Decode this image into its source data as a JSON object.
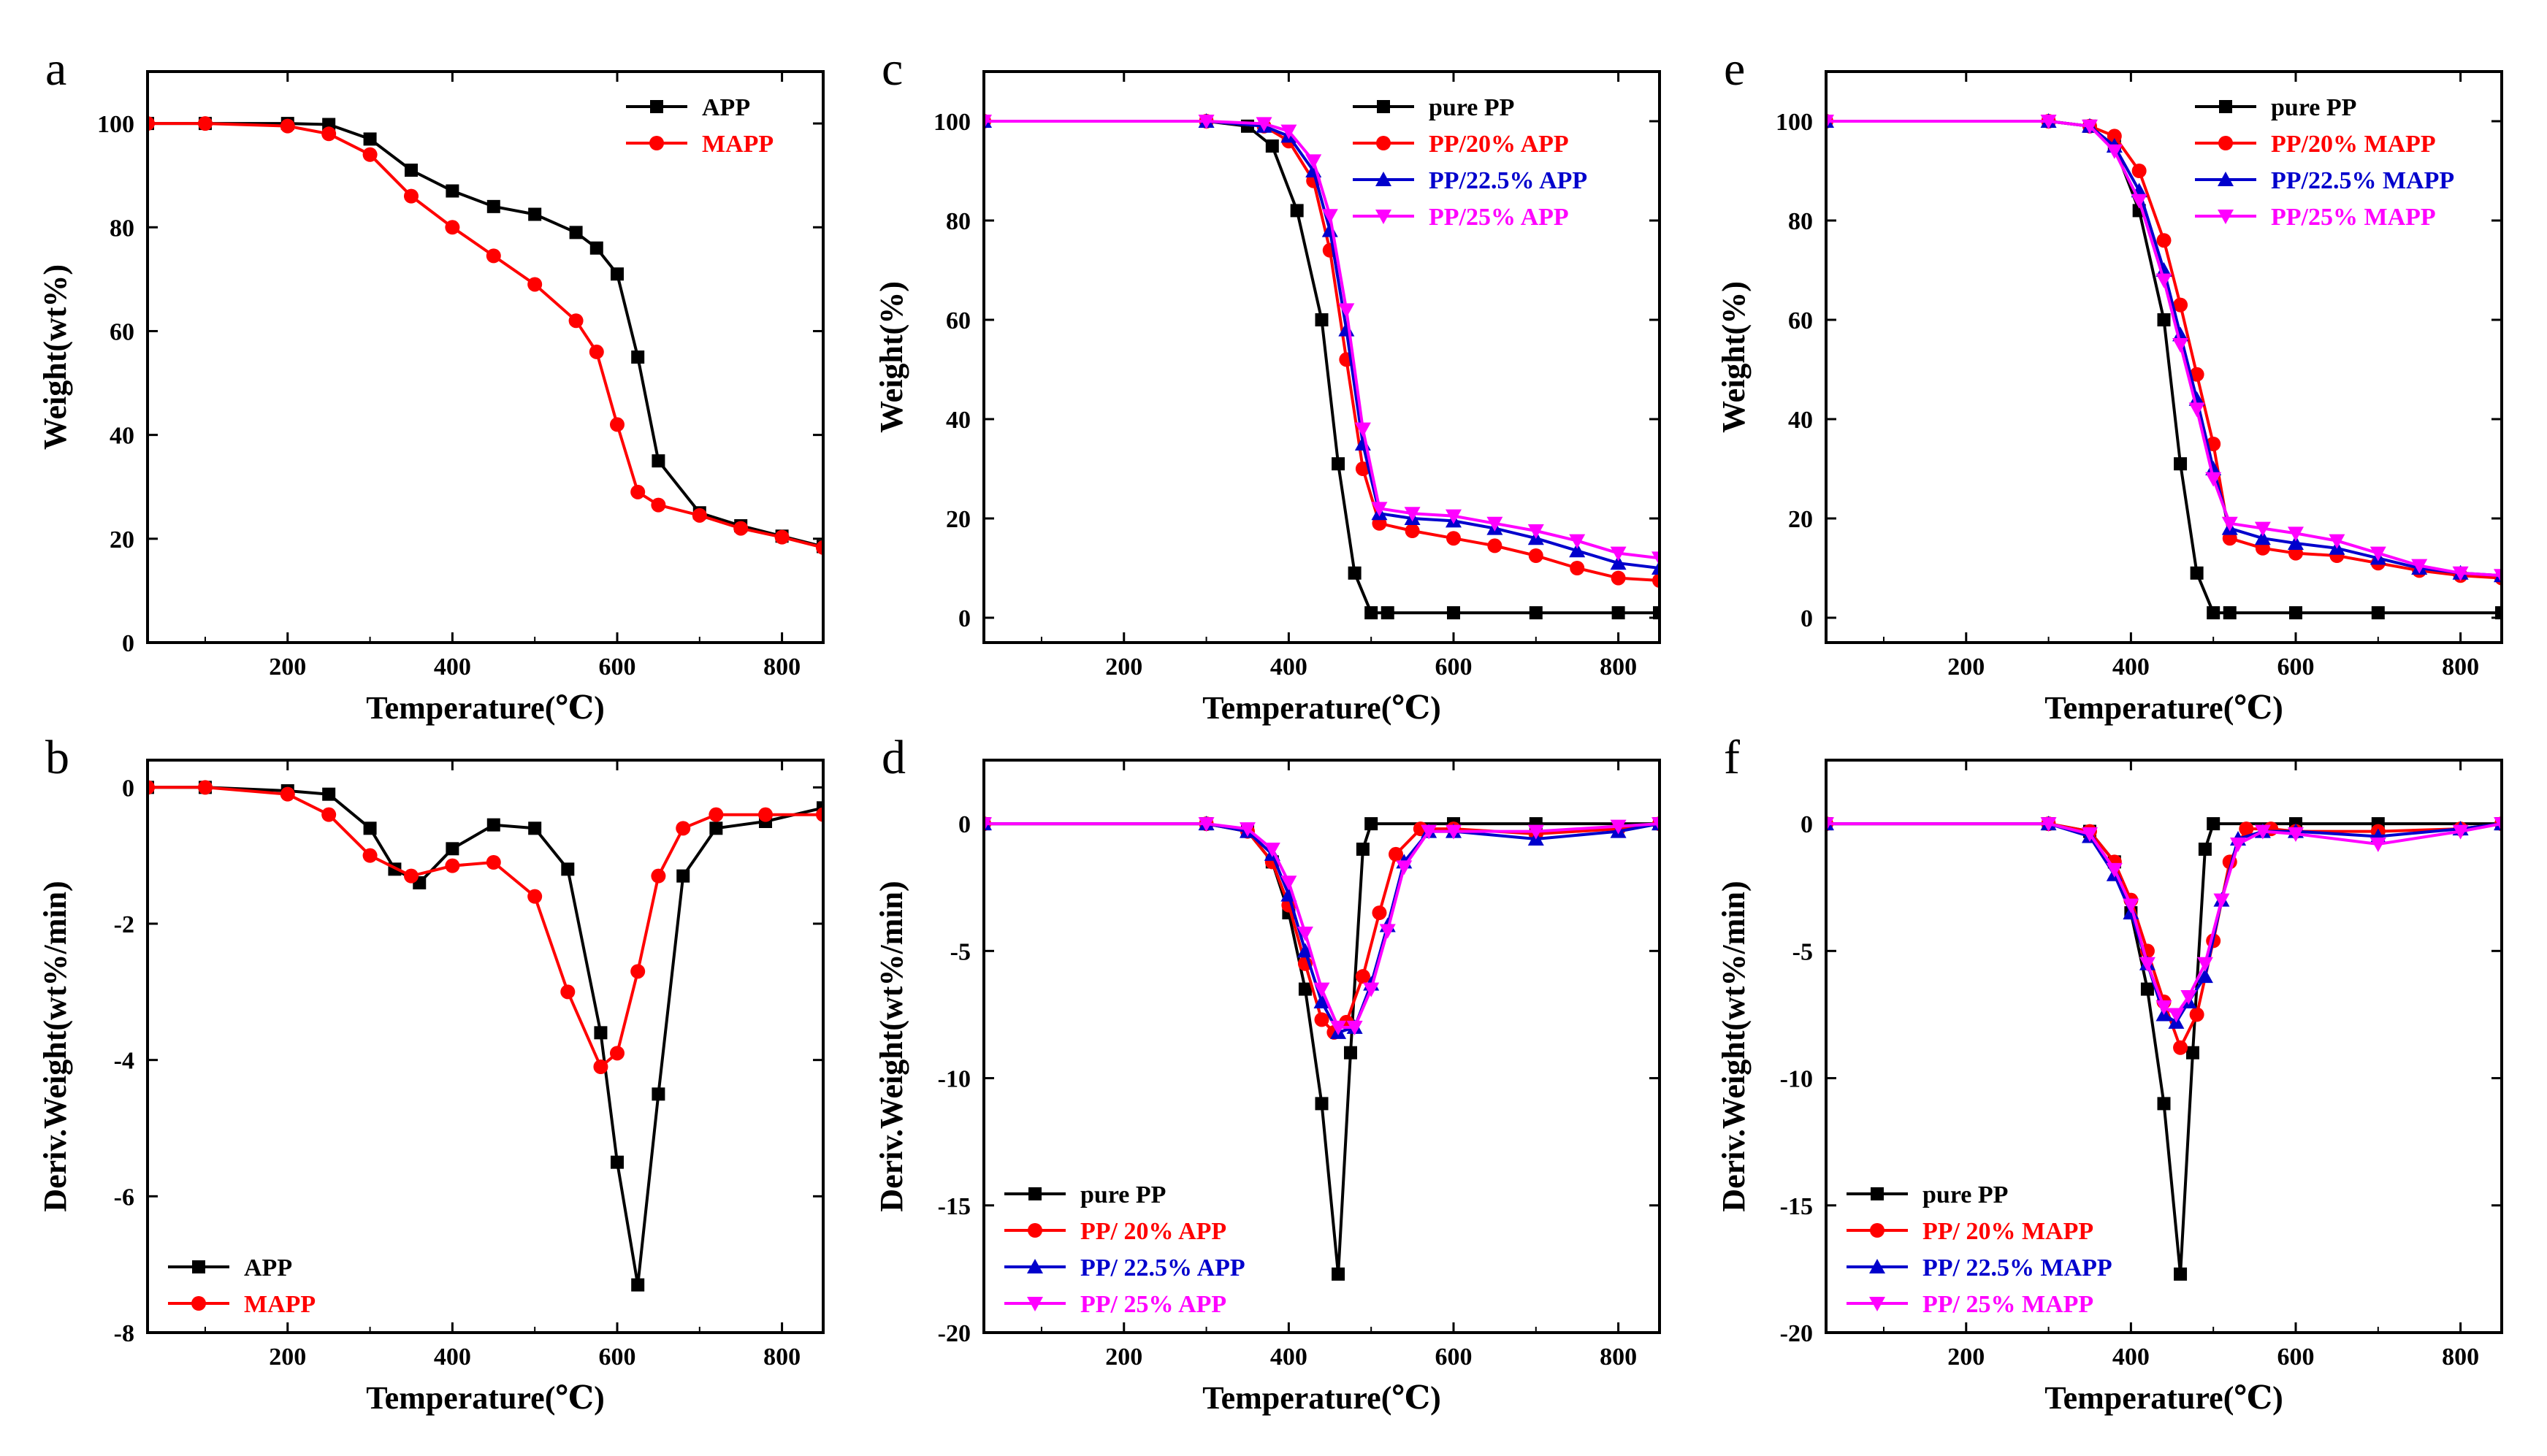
{
  "chart_data": [
    {
      "panel": "a",
      "type": "line",
      "xlabel": "Temperature(℃)",
      "ylabel": "Weight(wt%)",
      "xlim": [
        30,
        850
      ],
      "ylim": [
        0,
        110
      ],
      "xticks": [
        200,
        400,
        600,
        800
      ],
      "yticks": [
        0,
        20,
        40,
        60,
        80,
        100
      ],
      "legend": "top-right",
      "series": [
        {
          "name": "APP",
          "color": "#000000",
          "marker": "square",
          "x": [
            30,
            100,
            200,
            250,
            300,
            350,
            400,
            450,
            500,
            550,
            575,
            600,
            625,
            650,
            700,
            750,
            800,
            850
          ],
          "y": [
            100,
            100,
            100,
            99.8,
            97,
            91,
            87,
            84,
            82.5,
            79,
            76,
            71,
            55,
            35,
            25,
            22.5,
            20.5,
            18.5
          ]
        },
        {
          "name": "MAPP",
          "color": "#ff0000",
          "marker": "circle",
          "x": [
            30,
            100,
            200,
            250,
            300,
            350,
            400,
            450,
            500,
            550,
            575,
            600,
            625,
            650,
            700,
            750,
            800,
            850
          ],
          "y": [
            100,
            100,
            99.5,
            98,
            94,
            86,
            80,
            74.5,
            69,
            62,
            56,
            42,
            29,
            26.5,
            24.5,
            22,
            20.3,
            18.3
          ]
        }
      ]
    },
    {
      "panel": "b",
      "type": "line",
      "xlabel": "Temperature(℃)",
      "ylabel": "Deriv.Weight(wt%/min)",
      "xlim": [
        30,
        850
      ],
      "ylim": [
        -8,
        0.4
      ],
      "xticks": [
        200,
        400,
        600,
        800
      ],
      "yticks": [
        -8,
        -6,
        -4,
        -2,
        0
      ],
      "legend": "bottom-left",
      "series": [
        {
          "name": "APP",
          "color": "#000000",
          "marker": "square",
          "x": [
            30,
            100,
            200,
            250,
            300,
            330,
            360,
            400,
            450,
            500,
            540,
            580,
            600,
            625,
            650,
            680,
            720,
            780,
            850
          ],
          "y": [
            0,
            0,
            -0.05,
            -0.1,
            -0.6,
            -1.2,
            -1.4,
            -0.9,
            -0.55,
            -0.6,
            -1.2,
            -3.6,
            -5.5,
            -7.3,
            -4.5,
            -1.3,
            -0.6,
            -0.5,
            -0.3
          ]
        },
        {
          "name": "MAPP",
          "color": "#ff0000",
          "marker": "circle",
          "x": [
            30,
            100,
            200,
            250,
            300,
            350,
            400,
            450,
            500,
            540,
            580,
            600,
            625,
            650,
            680,
            720,
            780,
            850
          ],
          "y": [
            0,
            0,
            -0.1,
            -0.4,
            -1.0,
            -1.3,
            -1.15,
            -1.1,
            -1.6,
            -3.0,
            -4.1,
            -3.9,
            -2.7,
            -1.3,
            -0.6,
            -0.4,
            -0.4,
            -0.4
          ]
        }
      ]
    },
    {
      "panel": "c",
      "type": "line",
      "xlabel": "Temperature(℃)",
      "ylabel": "Weight(%)",
      "xlim": [
        30,
        850
      ],
      "ylim": [
        -5,
        110
      ],
      "xticks": [
        200,
        400,
        600,
        800
      ],
      "yticks": [
        0,
        20,
        40,
        60,
        80,
        100
      ],
      "legend": "top-right",
      "series": [
        {
          "name": "pure PP",
          "color": "#000000",
          "marker": "square",
          "x": [
            30,
            300,
            350,
            380,
            410,
            440,
            460,
            480,
            500,
            520,
            600,
            700,
            800,
            850
          ],
          "y": [
            100,
            100,
            99,
            95,
            82,
            60,
            31,
            9,
            1,
            1,
            1,
            1,
            1,
            1
          ]
        },
        {
          "name": "PP/20% APP",
          "color": "#ff0000",
          "marker": "circle",
          "x": [
            30,
            300,
            370,
            400,
            430,
            450,
            470,
            490,
            510,
            550,
            600,
            650,
            700,
            750,
            800,
            850
          ],
          "y": [
            100,
            100,
            99,
            96,
            88,
            74,
            52,
            30,
            19,
            17.5,
            16,
            14.5,
            12.5,
            10,
            8,
            7.5
          ]
        },
        {
          "name": "PP/22.5% APP",
          "color": "#0000cc",
          "marker": "triangle",
          "x": [
            30,
            300,
            370,
            400,
            430,
            450,
            470,
            490,
            510,
            550,
            600,
            650,
            700,
            750,
            800,
            850
          ],
          "y": [
            100,
            100,
            99,
            97,
            90,
            78,
            58,
            35,
            21,
            20,
            19.5,
            18,
            16,
            13.5,
            11,
            10
          ]
        },
        {
          "name": "PP/25% APP",
          "color": "#ff00ff",
          "marker": "triangle-down",
          "x": [
            30,
            300,
            370,
            400,
            430,
            450,
            470,
            490,
            510,
            550,
            600,
            650,
            700,
            750,
            800,
            850
          ],
          "y": [
            100,
            100,
            99.5,
            98,
            92,
            81,
            62,
            38,
            22,
            21,
            20.5,
            19,
            17.5,
            15.5,
            13,
            12
          ]
        }
      ]
    },
    {
      "panel": "d",
      "type": "line",
      "xlabel": "Temperature(℃)",
      "ylabel": "Deriv.Weight(wt%/min)",
      "xlim": [
        30,
        850
      ],
      "ylim": [
        -20,
        2.5
      ],
      "xticks": [
        200,
        400,
        600,
        800
      ],
      "yticks": [
        -20,
        -15,
        -10,
        -5,
        0
      ],
      "legend": "bottom-left",
      "series": [
        {
          "name": "pure PP",
          "color": "#000000",
          "marker": "square",
          "x": [
            30,
            300,
            350,
            380,
            400,
            420,
            440,
            460,
            475,
            490,
            500,
            600,
            700,
            850
          ],
          "y": [
            0,
            0,
            -0.3,
            -1.5,
            -3.5,
            -6.5,
            -11,
            -17.7,
            -9,
            -1,
            0,
            0,
            0,
            0
          ]
        },
        {
          "name": "PP/ 20% APP",
          "color": "#ff0000",
          "marker": "circle",
          "x": [
            30,
            300,
            350,
            380,
            400,
            420,
            440,
            455,
            470,
            490,
            510,
            530,
            560,
            600,
            700,
            800,
            850
          ],
          "y": [
            0,
            0,
            -0.3,
            -1.5,
            -3.2,
            -5.5,
            -7.7,
            -8.2,
            -7.8,
            -6,
            -3.5,
            -1.2,
            -0.2,
            -0.2,
            -0.4,
            -0.2,
            0
          ]
        },
        {
          "name": "PP/ 22.5% APP",
          "color": "#0000cc",
          "marker": "triangle",
          "x": [
            30,
            300,
            350,
            380,
            400,
            420,
            440,
            460,
            480,
            500,
            520,
            540,
            570,
            600,
            700,
            800,
            850
          ],
          "y": [
            0,
            0,
            -0.3,
            -1.2,
            -2.8,
            -5,
            -7,
            -8.2,
            -8,
            -6.3,
            -4,
            -1.5,
            -0.3,
            -0.3,
            -0.6,
            -0.3,
            0
          ]
        },
        {
          "name": "PP/ 25% APP",
          "color": "#ff00ff",
          "marker": "triangle-down",
          "x": [
            30,
            300,
            350,
            380,
            400,
            420,
            440,
            460,
            480,
            500,
            520,
            540,
            570,
            600,
            700,
            800,
            850
          ],
          "y": [
            0,
            0,
            -0.2,
            -1,
            -2.3,
            -4.3,
            -6.5,
            -8,
            -8,
            -6.5,
            -4.2,
            -1.7,
            -0.3,
            -0.3,
            -0.3,
            -0.1,
            0
          ]
        }
      ]
    },
    {
      "panel": "e",
      "type": "line",
      "xlabel": "Temperature(℃)",
      "ylabel": "Weight(%)",
      "xlim": [
        30,
        850
      ],
      "ylim": [
        -5,
        110
      ],
      "xticks": [
        200,
        400,
        600,
        800
      ],
      "yticks": [
        0,
        20,
        40,
        60,
        80,
        100
      ],
      "legend": "top-right",
      "series": [
        {
          "name": "pure PP",
          "color": "#000000",
          "marker": "square",
          "x": [
            30,
            300,
            350,
            380,
            410,
            440,
            460,
            480,
            500,
            520,
            600,
            700,
            850
          ],
          "y": [
            100,
            100,
            99,
            95,
            82,
            60,
            31,
            9,
            1,
            1,
            1,
            1,
            1
          ]
        },
        {
          "name": "PP/20% MAPP",
          "color": "#ff0000",
          "marker": "circle",
          "x": [
            30,
            300,
            350,
            380,
            410,
            440,
            460,
            480,
            500,
            520,
            560,
            600,
            650,
            700,
            750,
            800,
            850
          ],
          "y": [
            100,
            100,
            99,
            97,
            90,
            76,
            63,
            49,
            35,
            16,
            14,
            13,
            12.5,
            11,
            9.5,
            8.5,
            8
          ]
        },
        {
          "name": "PP/22.5% MAPP",
          "color": "#0000cc",
          "marker": "triangle",
          "x": [
            30,
            300,
            350,
            380,
            410,
            440,
            460,
            480,
            500,
            520,
            560,
            600,
            650,
            700,
            750,
            800,
            850
          ],
          "y": [
            100,
            100,
            99,
            95,
            86,
            70,
            57,
            44,
            30,
            18,
            16,
            15,
            14,
            12,
            10,
            9,
            8.5
          ]
        },
        {
          "name": "PP/25% MAPP",
          "color": "#ff00ff",
          "marker": "triangle-down",
          "x": [
            30,
            300,
            350,
            380,
            410,
            440,
            460,
            480,
            500,
            520,
            560,
            600,
            650,
            700,
            750,
            800,
            850
          ],
          "y": [
            100,
            100,
            99,
            94,
            84,
            68,
            55,
            42,
            28,
            19,
            18,
            17,
            15.5,
            13,
            10.5,
            9,
            8.5
          ]
        }
      ]
    },
    {
      "panel": "f",
      "type": "line",
      "xlabel": "Temperature(℃)",
      "ylabel": "Deriv.Weight(wt%/min)",
      "xlim": [
        30,
        850
      ],
      "ylim": [
        -20,
        2.5
      ],
      "xticks": [
        200,
        400,
        600,
        800
      ],
      "yticks": [
        -20,
        -15,
        -10,
        -5,
        0
      ],
      "legend": "bottom-left",
      "series": [
        {
          "name": "pure PP",
          "color": "#000000",
          "marker": "square",
          "x": [
            30,
            300,
            350,
            380,
            400,
            420,
            440,
            460,
            475,
            490,
            500,
            600,
            700,
            850
          ],
          "y": [
            0,
            0,
            -0.3,
            -1.5,
            -3.5,
            -6.5,
            -11,
            -17.7,
            -9,
            -1,
            0,
            0,
            0,
            0
          ]
        },
        {
          "name": "PP/ 20% MAPP",
          "color": "#ff0000",
          "marker": "circle",
          "x": [
            30,
            300,
            350,
            380,
            400,
            420,
            440,
            460,
            480,
            500,
            520,
            540,
            570,
            600,
            700,
            800,
            850
          ],
          "y": [
            0,
            0,
            -0.3,
            -1.5,
            -3,
            -5,
            -7,
            -8.8,
            -7.5,
            -4.6,
            -1.5,
            -0.2,
            -0.2,
            -0.3,
            -0.3,
            -0.2,
            0
          ]
        },
        {
          "name": "PP/ 22.5% MAPP",
          "color": "#0000cc",
          "marker": "triangle",
          "x": [
            30,
            300,
            350,
            380,
            400,
            420,
            440,
            455,
            470,
            490,
            510,
            530,
            560,
            600,
            700,
            800,
            850
          ],
          "y": [
            0,
            0,
            -0.5,
            -2,
            -3.5,
            -5.5,
            -7.5,
            -7.8,
            -7,
            -6,
            -3,
            -0.6,
            -0.3,
            -0.3,
            -0.5,
            -0.2,
            0
          ]
        },
        {
          "name": "PP/ 25% MAPP",
          "color": "#ff00ff",
          "marker": "triangle-down",
          "x": [
            30,
            300,
            350,
            380,
            400,
            420,
            440,
            455,
            470,
            490,
            510,
            530,
            560,
            600,
            700,
            800,
            850
          ],
          "y": [
            0,
            0,
            -0.4,
            -1.8,
            -3.2,
            -5.5,
            -7.2,
            -7.5,
            -6.8,
            -5.5,
            -3,
            -0.8,
            -0.3,
            -0.4,
            -0.8,
            -0.3,
            0
          ]
        }
      ]
    }
  ]
}
